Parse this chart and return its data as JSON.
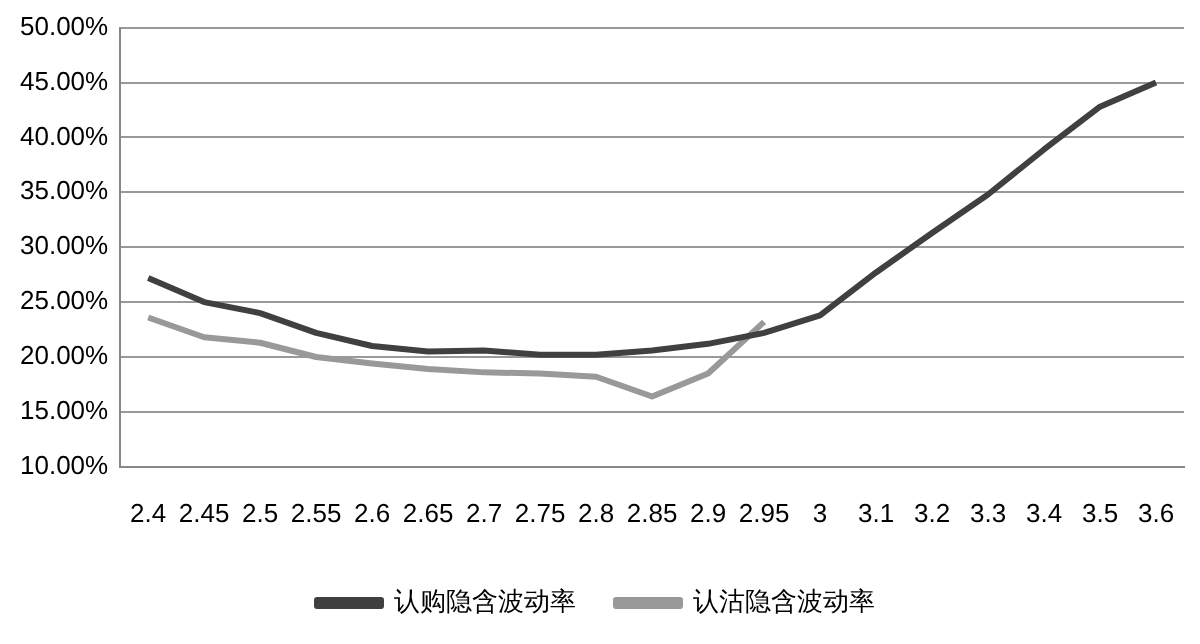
{
  "chart_data": {
    "type": "line",
    "categories": [
      "2.4",
      "2.45",
      "2.5",
      "2.55",
      "2.6",
      "2.65",
      "2.7",
      "2.75",
      "2.8",
      "2.85",
      "2.9",
      "2.95",
      "3",
      "3.1",
      "3.2",
      "3.3",
      "3.4",
      "3.5",
      "3.6"
    ],
    "series": [
      {
        "name": "认购隐含波动率",
        "color": "#404040",
        "values": [
          27.2,
          25.0,
          24.0,
          22.2,
          21.0,
          20.5,
          20.6,
          20.2,
          20.2,
          20.6,
          21.2,
          22.2,
          23.8,
          27.7,
          31.3,
          34.8,
          38.9,
          42.8,
          45.0
        ]
      },
      {
        "name": "认沽隐含波动率",
        "color": "#999999",
        "values": [
          23.6,
          21.8,
          21.3,
          20.0,
          19.4,
          18.9,
          18.6,
          18.5,
          18.2,
          16.4,
          18.5,
          23.2,
          null,
          null,
          null,
          null,
          null,
          null,
          null
        ]
      }
    ],
    "ylim": [
      10,
      50
    ],
    "yticks": [
      {
        "value": 10,
        "label": "10.00%"
      },
      {
        "value": 15,
        "label": "15.00%"
      },
      {
        "value": 20,
        "label": "20.00%"
      },
      {
        "value": 25,
        "label": "25.00%"
      },
      {
        "value": 30,
        "label": "30.00%"
      },
      {
        "value": 35,
        "label": "35.00%"
      },
      {
        "value": 40,
        "label": "40.00%"
      },
      {
        "value": 45,
        "label": "45.00%"
      },
      {
        "value": 50,
        "label": "50.00%"
      }
    ],
    "grid": "y",
    "legend": "bottom",
    "marker": "none",
    "line_style": "solid"
  }
}
